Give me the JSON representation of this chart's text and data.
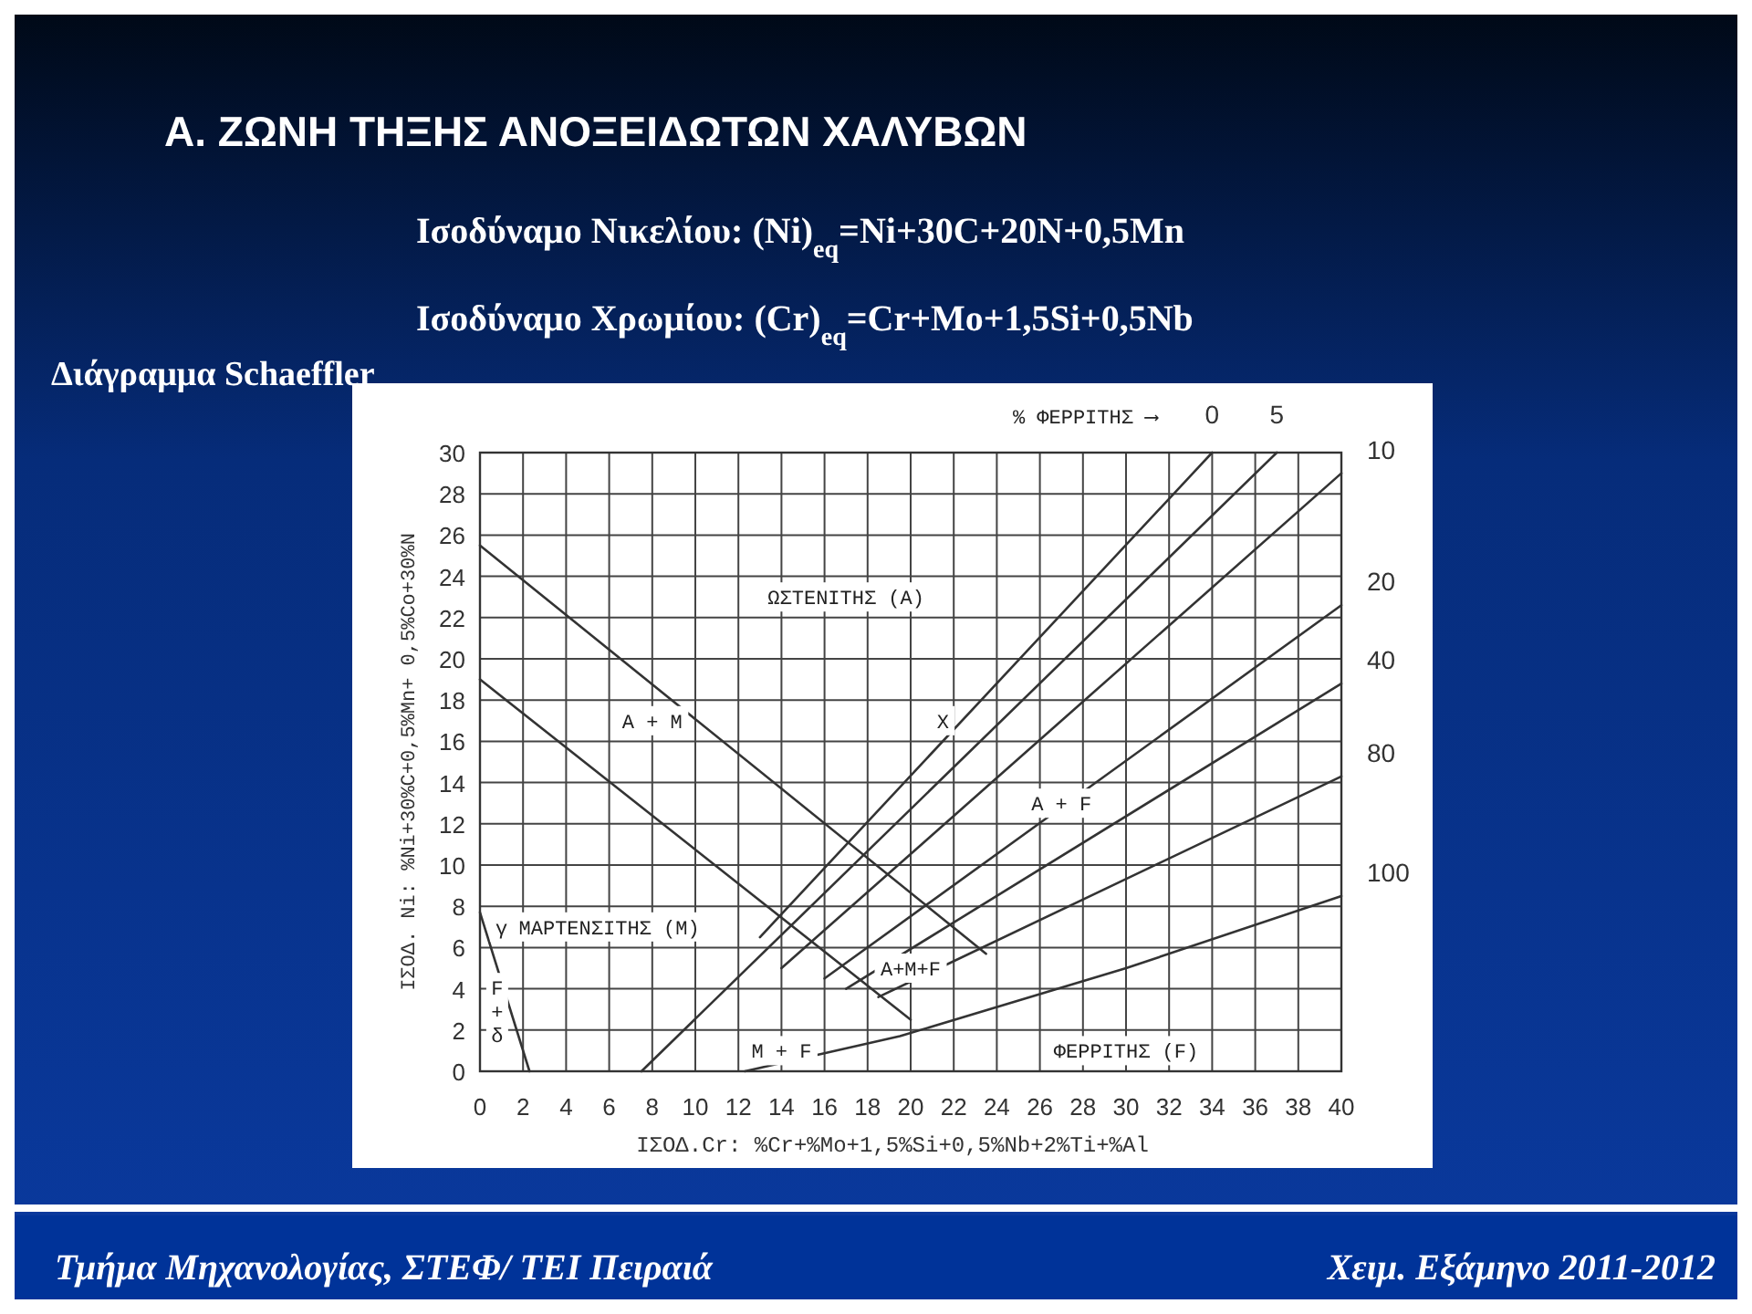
{
  "chart_data": {
    "type": "line",
    "title": "Α. ΖΩΝΗ ΤΗΞΗΣ ΑΝΟΞΕΙΔΩΤΩΝ ΧΑΛΥΒΩΝ",
    "subtitle": "Ισοδύναμο Νικελίου: (Ni)$_{eq}$=Ni+30C+20N+0,5Mn",
    "xlabel": "ΙΣΟΔ.Cr: %Cr+%Mo+1,5%Si+0,5%Nb+2%Ti+%Al",
    "ylabel": "ΙΣΟΔ. Ni: %Ni+30%C+0,5%Mn+ 0,5%Co+30%N",
    "xlim": [
      0,
      40
    ],
    "ylim": [
      0,
      30
    ],
    "xticks": [
      0,
      2,
      4,
      6,
      8,
      10,
      12,
      14,
      16,
      18,
      20,
      22,
      24,
      26,
      28,
      30,
      32,
      34,
      36,
      38,
      40
    ],
    "yticks": [
      0,
      2,
      4,
      6,
      8,
      10,
      12,
      14,
      16,
      18,
      20,
      22,
      24,
      26,
      28,
      30
    ],
    "grid": true,
    "series": [
      {
        "color": "#333333",
        "x": [
          0,
          23.5
        ],
        "values": [
          25.5,
          5.7
        ]
      },
      {
        "color": "#333333",
        "x": [
          0,
          20
        ],
        "values": [
          19,
          2.5
        ]
      },
      {
        "color": "#333333",
        "x": [
          0,
          2.3
        ],
        "values": [
          7.7,
          0
        ]
      },
      {
        "color": "#333333",
        "x": [
          13,
          34
        ],
        "values": [
          6.5,
          30
        ]
      },
      {
        "color": "#333333",
        "x": [
          7.5,
          37
        ],
        "values": [
          0,
          30
        ]
      },
      {
        "color": "#333333",
        "x": [
          14,
          40
        ],
        "values": [
          5,
          29
        ]
      },
      {
        "color": "#333333",
        "x": [
          16,
          40
        ],
        "values": [
          4.5,
          22.6
        ]
      },
      {
        "color": "#333333",
        "x": [
          17,
          40
        ],
        "values": [
          4,
          18.8
        ]
      },
      {
        "color": "#333333",
        "x": [
          18.5,
          40
        ],
        "values": [
          3.6,
          14.3
        ]
      },
      {
        "color": "#333333",
        "x": [
          12.3,
          19.5,
          30,
          40
        ],
        "values": [
          0,
          1.7,
          5,
          8.5
        ]
      }
    ],
    "annotations": [
      "Ισοδύναμο Χρωμίου: (Cr)$_{eq}$=Cr+Mo+1,5Si+0,5Nb",
      "Διάγραμμα Schaeffler",
      "Τμήμα Μηχανολογίας, ΣΤΕΦ/ ΤΕΙ Πειραιά",
      "Χειμ. Εξάμηνο 2011-2012",
      "% ΦΕΡΡΙΤΗΣ ⟶",
      {
        "text": "0",
        "x": 34,
        "y": 30
      },
      {
        "text": "5",
        "x": 37,
        "y": 30
      },
      {
        "text": "10",
        "x": 40,
        "y": 29
      },
      {
        "text": "20",
        "x": 40,
        "y": 22.6
      },
      {
        "text": "40",
        "x": 40,
        "y": 18.8
      },
      {
        "text": "80",
        "x": 40,
        "y": 14.3
      },
      {
        "text": "100",
        "x": 40,
        "y": 8.5
      },
      "ΩΣΤΕΝΙΤΗΣ (A)",
      "A + M",
      "X",
      "A + F",
      "A+M+F",
      "ΜΑΡΤΕΝΣΙΤΗΣ (M)",
      "M + F",
      "ΦΕΡΡΙΤΗΣ (F)",
      "γ",
      "F + δ"
    ]
  }
}
